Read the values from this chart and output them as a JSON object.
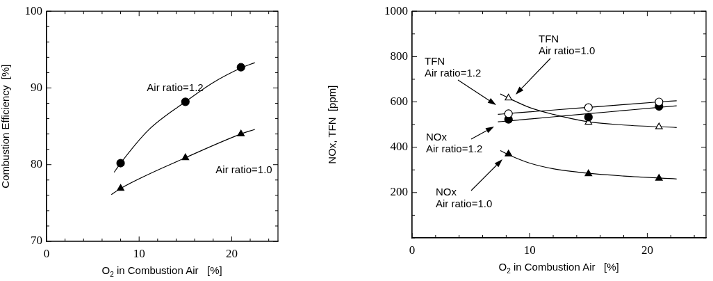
{
  "chart_data": [
    {
      "type": "scatter",
      "xlabel": "O$_{2}$ in Combustion Air   [%]",
      "ylabel": "Combustion Efficiency  [%]",
      "xlim": [
        0,
        25
      ],
      "xticks": [
        0,
        {
          "value": 2,
          "label": null
        },
        {
          "value": 4,
          "label": null
        },
        {
          "value": 6,
          "label": null
        },
        {
          "value": 8,
          "label": null
        },
        10,
        {
          "value": 12,
          "label": null
        },
        {
          "value": 14,
          "label": null
        },
        {
          "value": 16,
          "label": null
        },
        {
          "value": 18,
          "label": null
        },
        20,
        {
          "value": 22,
          "label": null
        },
        {
          "value": 24,
          "label": null
        }
      ],
      "ylim": [
        70,
        100
      ],
      "yticks": [
        70,
        {
          "value": 72,
          "label": null
        },
        {
          "value": 74,
          "label": null
        },
        {
          "value": 76,
          "label": null
        },
        {
          "value": 78,
          "label": null
        },
        80,
        {
          "value": 82,
          "label": null
        },
        {
          "value": 84,
          "label": null
        },
        {
          "value": 86,
          "label": null
        },
        {
          "value": 88,
          "label": null
        },
        90,
        {
          "value": 92,
          "label": null
        },
        {
          "value": 94,
          "label": null
        },
        {
          "value": 96,
          "label": null
        },
        {
          "value": 98,
          "label": null
        },
        100
      ],
      "grid": false,
      "series": [
        {
          "type": "scatter",
          "marker": "circle",
          "color": "#000000",
          "x": [
            8,
            15,
            21
          ],
          "values": [
            80.2,
            88.2,
            92.7
          ]
        },
        {
          "type": "scatter",
          "marker": "triangle",
          "color": "#000000",
          "x": [
            8,
            15,
            21
          ],
          "values": [
            76.9,
            80.9,
            84.0
          ]
        },
        {
          "type": "line",
          "marker": "none",
          "color": "#000000",
          "x": [
            7.3,
            8,
            11,
            15,
            18,
            21,
            22.5
          ],
          "values": [
            79.0,
            80.2,
            84.5,
            88.2,
            90.7,
            92.6,
            93.3
          ]
        },
        {
          "type": "line",
          "marker": "none",
          "color": "#000000",
          "x": [
            7,
            8,
            15,
            21,
            22.5
          ],
          "values": [
            76.1,
            76.9,
            80.9,
            84.0,
            84.6
          ]
        }
      ],
      "annotations": [
        "Air ratio=1.2",
        "Air ratio=1.0"
      ]
    },
    {
      "type": "scatter",
      "xlabel": "O$_{2}$ in Combustion Air   [%]",
      "ylabel": "NOx, TFN  [ppm]",
      "xlim": [
        0,
        25
      ],
      "xticks": [
        0,
        {
          "value": 2,
          "label": null
        },
        {
          "value": 4,
          "label": null
        },
        {
          "value": 6,
          "label": null
        },
        {
          "value": 8,
          "label": null
        },
        10,
        {
          "value": 12,
          "label": null
        },
        {
          "value": 14,
          "label": null
        },
        {
          "value": 16,
          "label": null
        },
        {
          "value": 18,
          "label": null
        },
        20,
        {
          "value": 22,
          "label": null
        },
        {
          "value": 24,
          "label": null
        }
      ],
      "ylim": [
        0,
        1000
      ],
      "yticks": [
        {
          "value": 0,
          "label": null
        },
        {
          "value": 100,
          "label": null
        },
        200,
        {
          "value": 300,
          "label": null
        },
        400,
        {
          "value": 500,
          "label": null
        },
        600,
        {
          "value": 700,
          "label": null
        },
        800,
        {
          "value": 900,
          "label": null
        },
        1000
      ],
      "grid": false,
      "series": [
        {
          "type": "scatter",
          "marker": "circle",
          "color": "#ffffff",
          "x": [
            8.2,
            15,
            21
          ],
          "values": [
            548,
            575,
            600
          ]
        },
        {
          "type": "scatter",
          "marker": "circle",
          "color": "#000000",
          "x": [
            8.2,
            15,
            21
          ],
          "values": [
            523,
            533,
            580
          ]
        },
        {
          "type": "scatter",
          "marker": "triangle",
          "color": "#ffffff",
          "x": [
            8.2,
            15,
            21
          ],
          "values": [
            617,
            510,
            490
          ]
        },
        {
          "type": "scatter",
          "marker": "triangle",
          "color": "#000000",
          "x": [
            8.2,
            15,
            21
          ],
          "values": [
            370,
            283,
            263
          ]
        },
        {
          "type": "line",
          "marker": "none",
          "color": "#000000",
          "x": [
            7.3,
            8.2,
            12,
            15,
            18,
            21,
            22.5
          ],
          "values": [
            545,
            549,
            564,
            576,
            588,
            600,
            605
          ]
        },
        {
          "type": "line",
          "marker": "none",
          "color": "#000000",
          "x": [
            7.3,
            8.2,
            12,
            15,
            18,
            21,
            22.5
          ],
          "values": [
            512,
            516,
            534,
            548,
            562,
            576,
            583
          ]
        },
        {
          "type": "line",
          "marker": "none",
          "color": "#000000",
          "x": [
            7.5,
            8.2,
            10,
            12,
            15,
            18,
            22.5
          ],
          "values": [
            635,
            617,
            575,
            545,
            512,
            498,
            487
          ]
        },
        {
          "type": "line",
          "marker": "none",
          "color": "#000000",
          "x": [
            7.5,
            8.2,
            10,
            12,
            15,
            18,
            22.5
          ],
          "values": [
            385,
            367,
            330,
            305,
            285,
            273,
            260
          ]
        }
      ],
      "annotations": [
        "TFN\nAir ratio=1.0",
        "TFN\nAir ratio=1.2",
        "NOx\nAir ratio=1.2",
        "NOx\nAir ratio=1.0"
      ]
    }
  ]
}
